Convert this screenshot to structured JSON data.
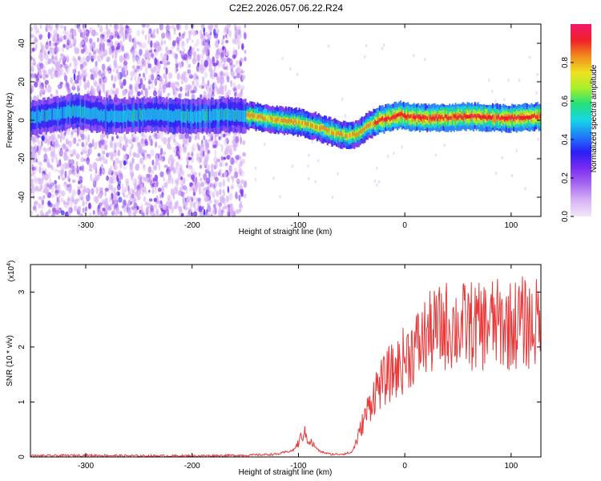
{
  "title": "C2E2.2026.057.06.22.R24",
  "colors": {
    "background": "#ffffff",
    "axis": "#000000",
    "snr_line": "#e83a3a",
    "colormap": [
      "#f3e6fb",
      "#d8b4f5",
      "#a86af0",
      "#7a2cf0",
      "#2a1ef5",
      "#1f7cf8",
      "#17d6e8",
      "#22e07a",
      "#a6f02a",
      "#f0e020",
      "#f08a1e",
      "#f0202a",
      "#f01a6a"
    ]
  },
  "chart_data": [
    {
      "type": "heatmap",
      "xlabel": "Height of straight line (km)",
      "ylabel": "Frequency (Hz)",
      "xlim": [
        -352,
        128
      ],
      "ylim": [
        -50,
        50
      ],
      "xticks": [
        -300,
        -200,
        -100,
        0,
        100
      ],
      "xtick_labels": [
        "-300",
        "-200",
        "-100",
        "0",
        "100"
      ],
      "yticks": [
        -40,
        -20,
        0,
        20,
        40
      ],
      "ytick_labels": [
        "-40",
        "-20",
        "0",
        "20",
        "40"
      ],
      "ridge_frequency": {
        "x": [
          -352,
          -310,
          -280,
          -240,
          -200,
          -160,
          -140,
          -120,
          -100,
          -85,
          -70,
          -55,
          -45,
          -35,
          -25,
          -15,
          -5,
          0,
          20,
          60,
          100,
          128
        ],
        "y": [
          1,
          5,
          2,
          3,
          2,
          3,
          2,
          0,
          -1,
          -3,
          -6,
          -8,
          -7,
          -3,
          0,
          1,
          3,
          2,
          1,
          2,
          1,
          2
        ]
      },
      "colorbar": {
        "label": "Normalized spectral amplitude",
        "range": [
          0,
          1
        ],
        "ticks": [
          0.0,
          0.2,
          0.4,
          0.6,
          0.8
        ],
        "tick_labels": [
          "0.0",
          "0.2",
          "0.4",
          "0.6",
          "0.8"
        ]
      }
    },
    {
      "type": "line",
      "xlabel": "Height of straight line (km)",
      "ylabel": "SNR (10 * v/v)",
      "y_scale_label": "(x10",
      "y_scale_exp": "4",
      "y_scale_close": ")",
      "xlim": [
        -352,
        128
      ],
      "ylim": [
        0,
        3.5
      ],
      "xticks": [
        -300,
        -200,
        -100,
        0,
        100
      ],
      "xtick_labels": [
        "-300",
        "-200",
        "-100",
        "0",
        "100"
      ],
      "yticks": [
        0,
        1,
        2,
        3
      ],
      "ytick_labels": [
        "0",
        "1",
        "2",
        "3"
      ],
      "series": [
        {
          "name": "SNR",
          "x": [
            -352,
            -300,
            -250,
            -200,
            -150,
            -120,
            -105,
            -100,
            -95,
            -90,
            -85,
            -80,
            -70,
            -60,
            -50,
            -45,
            -40,
            -35,
            -30,
            -25,
            -20,
            -15,
            -10,
            -5,
            0,
            5,
            10,
            15,
            20,
            25,
            30,
            40,
            50,
            60,
            70,
            80,
            90,
            100,
            110,
            120,
            128
          ],
          "y": [
            0.02,
            0.03,
            0.02,
            0.02,
            0.03,
            0.05,
            0.12,
            0.25,
            0.45,
            0.3,
            0.2,
            0.1,
            0.05,
            0.05,
            0.08,
            0.3,
            0.6,
            0.85,
            1.1,
            1.3,
            1.35,
            1.5,
            1.55,
            1.65,
            1.8,
            1.9,
            2.0,
            2.05,
            2.2,
            2.25,
            2.3,
            2.4,
            2.35,
            2.4,
            2.35,
            2.45,
            2.4,
            2.4,
            2.45,
            2.4,
            2.45
          ]
        }
      ]
    }
  ]
}
